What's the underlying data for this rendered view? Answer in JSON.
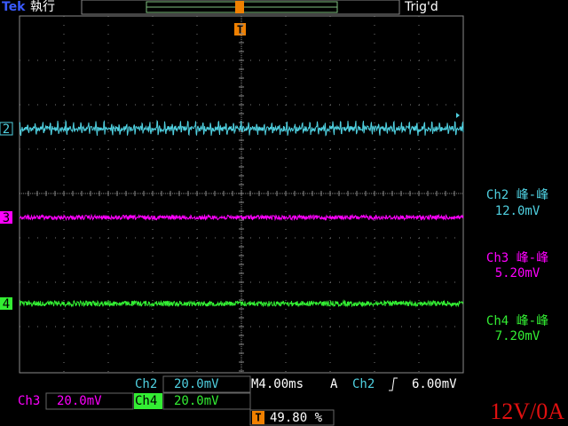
{
  "header": {
    "brand": "Tek",
    "status": "執行",
    "trigger_status": "Trig'd",
    "trigger_marker": "T"
  },
  "channels": [
    {
      "marker": "2"
    },
    {
      "marker": "3"
    },
    {
      "marker": "4"
    }
  ],
  "measurements": [
    {
      "label": "Ch2 峰-峰",
      "value": "12.0mV"
    },
    {
      "label": "Ch3 峰-峰",
      "value": "5.20mV"
    },
    {
      "label": "Ch4 峰-峰",
      "value": "7.20mV"
    }
  ],
  "footer": {
    "ch_a": "Ch2",
    "scale_a": "20.0mV",
    "timebase": "M4.00ms",
    "trigger_mode": "A",
    "trigger_source": "Ch2",
    "trigger_level": "6.00mV",
    "ch_b": "Ch3",
    "scale_b": "20.0mV",
    "ch_c": "Ch4",
    "scale_c": "20.0mV",
    "position_marker": "T",
    "position": "49.80 %"
  },
  "note": "12V/0A"
}
